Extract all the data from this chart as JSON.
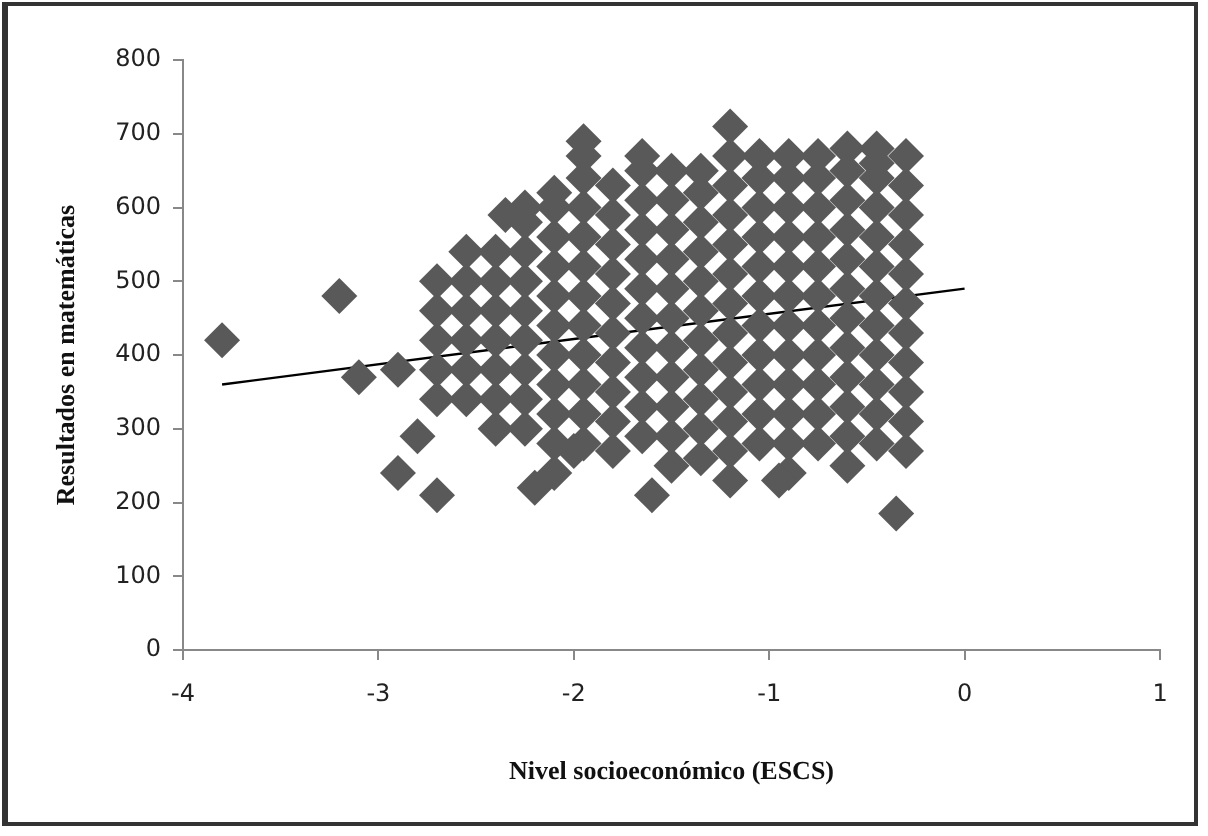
{
  "chart_data": {
    "type": "scatter",
    "xlabel": "Nivel socioeconómico (ESCS)",
    "ylabel": "Resultados en matemáticas",
    "xlim": [
      -4,
      1
    ],
    "xticks": [
      -4,
      -3,
      -2,
      -1,
      0,
      1
    ],
    "ylim": [
      0,
      800
    ],
    "yticks": [
      0,
      100,
      200,
      300,
      400,
      500,
      600,
      700,
      800
    ],
    "grid": false,
    "legend": false,
    "marker": "diamond",
    "series": [
      {
        "color": "#595959",
        "x": [
          -2.7,
          -2.7,
          -2.7,
          -2.7,
          -2.7,
          -2.55,
          -2.55,
          -2.55,
          -2.55,
          -2.55,
          -2.55,
          -2.4,
          -2.4,
          -2.4,
          -2.4,
          -2.4,
          -2.4,
          -2.4,
          -2.25,
          -2.25,
          -2.25,
          -2.25,
          -2.25,
          -2.25,
          -2.25,
          -2.25,
          -2.25,
          -2.1,
          -2.1,
          -2.1,
          -2.1,
          -2.1,
          -2.1,
          -2.1,
          -2.1,
          -2.1,
          -2.1,
          -2.1,
          -1.95,
          -1.95,
          -1.95,
          -1.95,
          -1.95,
          -1.95,
          -1.95,
          -1.95,
          -1.95,
          -1.95,
          -1.95,
          -1.95,
          -1.8,
          -1.8,
          -1.8,
          -1.8,
          -1.8,
          -1.8,
          -1.8,
          -1.8,
          -1.8,
          -1.8,
          -1.65,
          -1.65,
          -1.65,
          -1.65,
          -1.65,
          -1.65,
          -1.65,
          -1.65,
          -1.65,
          -1.65,
          -1.65,
          -1.5,
          -1.5,
          -1.5,
          -1.5,
          -1.5,
          -1.5,
          -1.5,
          -1.5,
          -1.5,
          -1.5,
          -1.5,
          -1.35,
          -1.35,
          -1.35,
          -1.35,
          -1.35,
          -1.35,
          -1.35,
          -1.35,
          -1.35,
          -1.35,
          -1.35,
          -1.2,
          -1.2,
          -1.2,
          -1.2,
          -1.2,
          -1.2,
          -1.2,
          -1.2,
          -1.2,
          -1.2,
          -1.2,
          -1.2,
          -1.2,
          -1.05,
          -1.05,
          -1.05,
          -1.05,
          -1.05,
          -1.05,
          -1.05,
          -1.05,
          -1.05,
          -1.05,
          -1.05,
          -0.9,
          -0.9,
          -0.9,
          -0.9,
          -0.9,
          -0.9,
          -0.9,
          -0.9,
          -0.9,
          -0.9,
          -0.9,
          -0.9,
          -0.75,
          -0.75,
          -0.75,
          -0.75,
          -0.75,
          -0.75,
          -0.75,
          -0.75,
          -0.75,
          -0.75,
          -0.75,
          -0.6,
          -0.6,
          -0.6,
          -0.6,
          -0.6,
          -0.6,
          -0.6,
          -0.6,
          -0.6,
          -0.6,
          -0.6,
          -0.6,
          -0.45,
          -0.45,
          -0.45,
          -0.45,
          -0.45,
          -0.45,
          -0.45,
          -0.45,
          -0.45,
          -0.45,
          -0.45,
          -0.45,
          -0.3,
          -0.3,
          -0.3,
          -0.3,
          -0.3,
          -0.3,
          -0.3,
          -0.3,
          -0.3,
          -0.3,
          -0.3,
          -3.8,
          -3.2,
          -3.1,
          -2.9,
          -2.8,
          -2.9,
          -2.7,
          -2.2,
          -1.6,
          -0.35,
          -2.35,
          -2.0,
          -0.95
        ],
        "values": [
          340,
          380,
          420,
          460,
          500,
          340,
          380,
          420,
          460,
          500,
          540,
          300,
          340,
          380,
          420,
          460,
          500,
          540,
          300,
          340,
          380,
          420,
          460,
          500,
          540,
          580,
          600,
          240,
          280,
          320,
          360,
          400,
          440,
          480,
          520,
          560,
          600,
          620,
          280,
          320,
          360,
          400,
          440,
          480,
          520,
          560,
          600,
          640,
          670,
          690,
          270,
          310,
          350,
          390,
          430,
          470,
          510,
          550,
          590,
          630,
          290,
          330,
          370,
          410,
          450,
          490,
          530,
          570,
          610,
          650,
          670,
          250,
          290,
          330,
          370,
          410,
          450,
          490,
          530,
          570,
          610,
          650,
          260,
          300,
          340,
          380,
          420,
          460,
          500,
          540,
          580,
          620,
          650,
          230,
          270,
          310,
          350,
          390,
          430,
          470,
          510,
          550,
          590,
          630,
          670,
          710,
          280,
          320,
          360,
          400,
          440,
          480,
          520,
          560,
          600,
          640,
          670,
          240,
          280,
          320,
          360,
          400,
          440,
          480,
          520,
          560,
          600,
          640,
          670,
          280,
          320,
          360,
          400,
          440,
          480,
          520,
          560,
          600,
          640,
          670,
          250,
          290,
          330,
          370,
          410,
          450,
          490,
          530,
          570,
          610,
          650,
          680,
          280,
          320,
          360,
          400,
          440,
          480,
          520,
          560,
          600,
          640,
          660,
          680,
          270,
          310,
          350,
          390,
          430,
          470,
          510,
          550,
          590,
          630,
          670,
          420,
          480,
          370,
          380,
          290,
          240,
          210,
          220,
          210,
          185,
          590,
          270,
          230
        ]
      },
      {
        "type": "line",
        "color": "#000000",
        "marker": "none",
        "x": [
          -3.8,
          0
        ],
        "values": [
          360,
          490
        ]
      }
    ]
  }
}
